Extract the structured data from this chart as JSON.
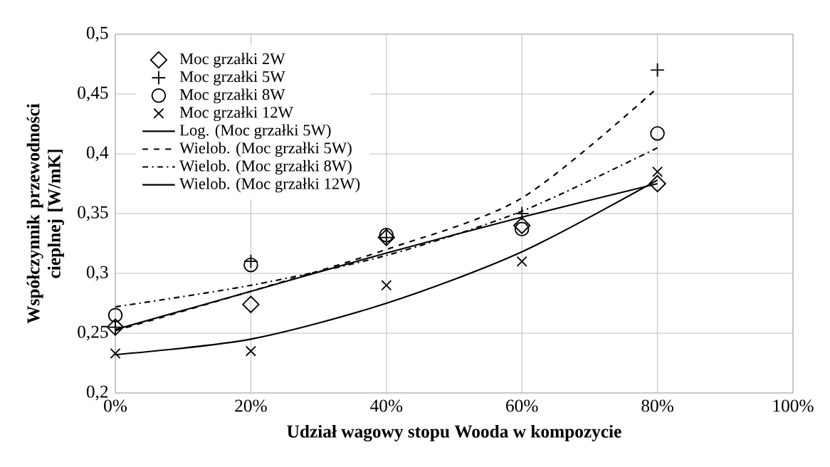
{
  "chart_data": {
    "type": "scatter",
    "xlabel": "Udział wagowy stopu Wooda w kompozycie",
    "ylabel": "Współczynnik przewodności cieplnej [W/mK]",
    "xlim": [
      0,
      100
    ],
    "xticks": [
      {
        "value": 0,
        "label": "0%"
      },
      {
        "value": 20,
        "label": "20%"
      },
      {
        "value": 40,
        "label": "40%"
      },
      {
        "value": 60,
        "label": "60%"
      },
      {
        "value": 80,
        "label": "80%"
      },
      {
        "value": 100,
        "label": "100%"
      }
    ],
    "ylim": [
      0.2,
      0.5
    ],
    "yticks": [
      {
        "value": 0.2,
        "label": "0,2"
      },
      {
        "value": 0.25,
        "label": "0,25"
      },
      {
        "value": 0.3,
        "label": "0,3"
      },
      {
        "value": 0.35,
        "label": "0,35"
      },
      {
        "value": 0.4,
        "label": "0,4"
      },
      {
        "value": 0.45,
        "label": "0,45"
      },
      {
        "value": 0.5,
        "label": "0,5"
      }
    ],
    "grid": true,
    "legend": "top left",
    "series": [
      {
        "name": "Moc grzałki 2W",
        "color": "#000000",
        "marker": "diamond",
        "x": [
          0,
          20,
          40,
          60,
          80
        ],
        "values": [
          0.255,
          0.274,
          0.33,
          0.34,
          0.375
        ]
      },
      {
        "name": "Moc grzałki 5W",
        "color": "#000000",
        "marker": "plus",
        "x": [
          0,
          20,
          40,
          60,
          80
        ],
        "values": [
          0.255,
          0.31,
          0.33,
          0.35,
          0.47
        ]
      },
      {
        "name": "Moc grzałki 8W",
        "color": "#000000",
        "marker": "circle",
        "x": [
          0,
          20,
          40,
          60,
          80
        ],
        "values": [
          0.265,
          0.307,
          0.332,
          0.337,
          0.417
        ]
      },
      {
        "name": "Moc grzałki 12W",
        "color": "#000000",
        "marker": "cross",
        "x": [
          0,
          20,
          40,
          60,
          80
        ],
        "values": [
          0.233,
          0.235,
          0.29,
          0.31,
          0.385
        ]
      },
      {
        "name": "Log. (Moc grzałki 5W)",
        "type": "line",
        "color": "#000000",
        "line_style": "solid",
        "x": [
          0,
          20,
          40,
          60,
          80
        ],
        "values": [
          0.253,
          0.285,
          0.317,
          0.347,
          0.375
        ]
      },
      {
        "name": "Wielob. (Moc grzałki 5W)",
        "type": "line",
        "color": "#000000",
        "line_style": "dashed",
        "x": [
          0,
          20,
          40,
          60,
          80
        ],
        "values": [
          0.252,
          0.285,
          0.32,
          0.363,
          0.455
        ]
      },
      {
        "name": "Wielob. (Moc grzałki 8W)",
        "type": "line",
        "color": "#000000",
        "line_style": "dashdot",
        "x": [
          0,
          20,
          40,
          60,
          80
        ],
        "values": [
          0.272,
          0.29,
          0.315,
          0.352,
          0.405
        ]
      },
      {
        "name": "Wielob. (Moc grzałki 12W)",
        "type": "line",
        "color": "#000000",
        "line_style": "solid",
        "x": [
          0,
          20,
          40,
          60,
          80
        ],
        "values": [
          0.232,
          0.245,
          0.275,
          0.318,
          0.378
        ]
      }
    ]
  }
}
